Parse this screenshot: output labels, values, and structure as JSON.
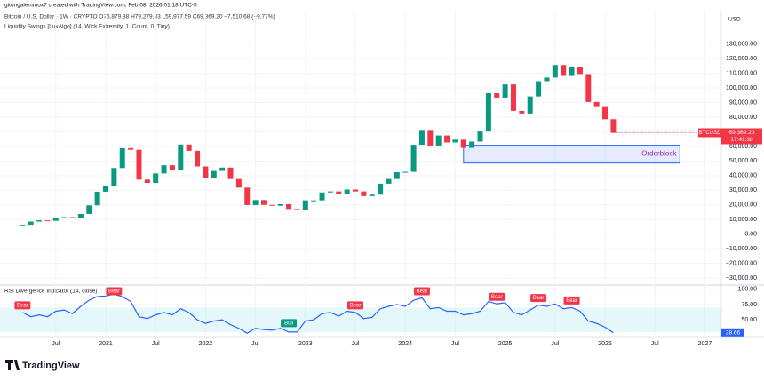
{
  "header": {
    "credit": "gitongalemmox7 created with TradingView.com, Feb 08, 2026 01:18 UTC-5",
    "symbol": "Bitcoin / U.S. Dollar · 1W · CRYPTO  O76,879.88  H79,279.83  L59,977.59  C69,369.20  −7,510.68 (−9.77%)",
    "indicator": "Liquidity Swings [LuxAlgo] (14, Wick Extremity, 1, Count, 0, Tiny)"
  },
  "chart_data": [
    {
      "type": "candlestick",
      "y_axis_label": "USD",
      "x": [
        "2020-03",
        "2020-04",
        "2020-05",
        "2020-06",
        "2020-07",
        "2020-08",
        "2020-09",
        "2020-10",
        "2020-11",
        "2020-12",
        "2021-01",
        "2021-02",
        "2021-03",
        "2021-04",
        "2021-05",
        "2021-06",
        "2021-07",
        "2021-08",
        "2021-09",
        "2021-10",
        "2021-11",
        "2021-12",
        "2022-01",
        "2022-02",
        "2022-03",
        "2022-04",
        "2022-05",
        "2022-06",
        "2022-07",
        "2022-08",
        "2022-09",
        "2022-10",
        "2022-11",
        "2022-12",
        "2023-01",
        "2023-02",
        "2023-03",
        "2023-04",
        "2023-05",
        "2023-06",
        "2023-07",
        "2023-08",
        "2023-09",
        "2023-10",
        "2023-11",
        "2023-12",
        "2024-01",
        "2024-02",
        "2024-03",
        "2024-04",
        "2024-05",
        "2024-06",
        "2024-07",
        "2024-08",
        "2024-09",
        "2024-10",
        "2024-11",
        "2024-12",
        "2025-01",
        "2025-02",
        "2025-03",
        "2025-04",
        "2025-05",
        "2025-06",
        "2025-07",
        "2025-08",
        "2025-09",
        "2025-10",
        "2025-11",
        "2025-12",
        "2026-01",
        "2026-02"
      ],
      "series": [
        {
          "name": "BTCUSD",
          "values": [
            6400,
            8600,
            9450,
            9130,
            11300,
            11650,
            10780,
            13800,
            19700,
            29000,
            33100,
            45200,
            58800,
            57700,
            37300,
            35000,
            41500,
            47100,
            43800,
            61300,
            57000,
            46300,
            38500,
            43200,
            45500,
            37700,
            31800,
            19900,
            23300,
            20000,
            19400,
            20500,
            17200,
            16500,
            23100,
            23100,
            28500,
            29200,
            27200,
            30500,
            29200,
            26000,
            27000,
            34500,
            37700,
            42300,
            42600,
            61100,
            71300,
            60600,
            67500,
            62700,
            64600,
            59000,
            63300,
            70200,
            96400,
            93400,
            102400,
            84300,
            82500,
            94200,
            104600,
            107100,
            115700,
            108200,
            114000,
            109500,
            90400,
            87500,
            78600,
            69369.2
          ]
        }
      ],
      "up_color": "#089981",
      "down_color": "#f23645",
      "last_value_label": "69,369.20",
      "countdown": "17:41:38",
      "orderblock": {
        "label": "Orderblock",
        "top": 60800,
        "bottom": 48600,
        "start": "2024-08",
        "end": "2026-10"
      },
      "xlim": [
        "2020-01",
        "2027-08"
      ],
      "xticks": [
        {
          "value": "2020-07",
          "label": "Jul"
        },
        {
          "value": "2021-01",
          "label": "2021"
        },
        {
          "value": "2021-07",
          "label": "Jul"
        },
        {
          "value": "2022-01",
          "label": "2022"
        },
        {
          "value": "2022-07",
          "label": "Jul"
        },
        {
          "value": "2023-01",
          "label": "2023"
        },
        {
          "value": "2023-07",
          "label": "Jul"
        },
        {
          "value": "2024-01",
          "label": "2024"
        },
        {
          "value": "2024-07",
          "label": "Jul"
        },
        {
          "value": "2025-01",
          "label": "2025"
        },
        {
          "value": "2025-07",
          "label": "Jul"
        },
        {
          "value": "2026-01",
          "label": "2026"
        },
        {
          "value": "2026-07",
          "label": "Jul"
        },
        {
          "value": "2027-01",
          "label": "2027"
        }
      ],
      "ylim": [
        -33000,
        145000
      ],
      "yticks": [
        {
          "value": 130000,
          "label": "130,000.00"
        },
        {
          "value": 120000,
          "label": "120,000.00"
        },
        {
          "value": 110000,
          "label": "110,000.00"
        },
        {
          "value": 100000,
          "label": "100,000.00"
        },
        {
          "value": 90000,
          "label": "90,000.00"
        },
        {
          "value": 80000,
          "label": "80,000.00"
        },
        {
          "value": 70000,
          "label": "70,000.00"
        },
        {
          "value": 60000,
          "label": "60,000.00"
        },
        {
          "value": 50000,
          "label": "50,000.00"
        },
        {
          "value": 40000,
          "label": "40,000.00"
        },
        {
          "value": 30000,
          "label": "30,000.00"
        },
        {
          "value": 20000,
          "label": "20,000.00"
        },
        {
          "value": 10000,
          "label": "10,000.00"
        },
        {
          "value": 0,
          "label": "0.00"
        },
        {
          "value": -10000,
          "label": "−10,000.00"
        },
        {
          "value": -20000,
          "label": "−20,000.00"
        },
        {
          "value": -30000,
          "label": "−30,000.00"
        }
      ],
      "grid": true
    },
    {
      "type": "line",
      "title": "RSI Divergence Indicator (14, close)",
      "series": [
        {
          "color": "#2962ff",
          "values": [
            62,
            55,
            58,
            55,
            64,
            66,
            60,
            72,
            82,
            88,
            89,
            92,
            88,
            80,
            55,
            52,
            58,
            62,
            58,
            68,
            62,
            50,
            44,
            48,
            50,
            42,
            36,
            28,
            36,
            34,
            33,
            36,
            30,
            30,
            48,
            50,
            60,
            62,
            56,
            64,
            62,
            52,
            54,
            68,
            72,
            75,
            72,
            82,
            86,
            68,
            70,
            64,
            64,
            58,
            60,
            64,
            80,
            76,
            78,
            62,
            58,
            66,
            74,
            72,
            76,
            68,
            70,
            64,
            48,
            44,
            38,
            28.66
          ]
        }
      ],
      "last_value_label": "28.66",
      "band": [
        30,
        70
      ],
      "band_color": "#b2ebf2",
      "annotations": [
        {
          "x": "2020-03",
          "label": "Bear",
          "color": "#f23645"
        },
        {
          "x": "2021-02",
          "label": "Bear",
          "color": "#f23645"
        },
        {
          "x": "2022-11",
          "label": "Bull",
          "color": "#089981"
        },
        {
          "x": "2023-07",
          "label": "Bear",
          "color": "#f23645"
        },
        {
          "x": "2024-03",
          "label": "Bear",
          "color": "#f23645"
        },
        {
          "x": "2024-12",
          "label": "Bear",
          "color": "#f23645"
        },
        {
          "x": "2025-05",
          "label": "Bear",
          "color": "#f23645"
        },
        {
          "x": "2025-09",
          "label": "Bear",
          "color": "#f23645"
        }
      ],
      "ylim": [
        24,
        104
      ],
      "yticks": [
        {
          "value": 100,
          "label": "100.00"
        },
        {
          "value": 75,
          "label": "75.00"
        },
        {
          "value": 50,
          "label": "50.00"
        }
      ]
    }
  ],
  "footer": {
    "logo": "TradingView"
  }
}
